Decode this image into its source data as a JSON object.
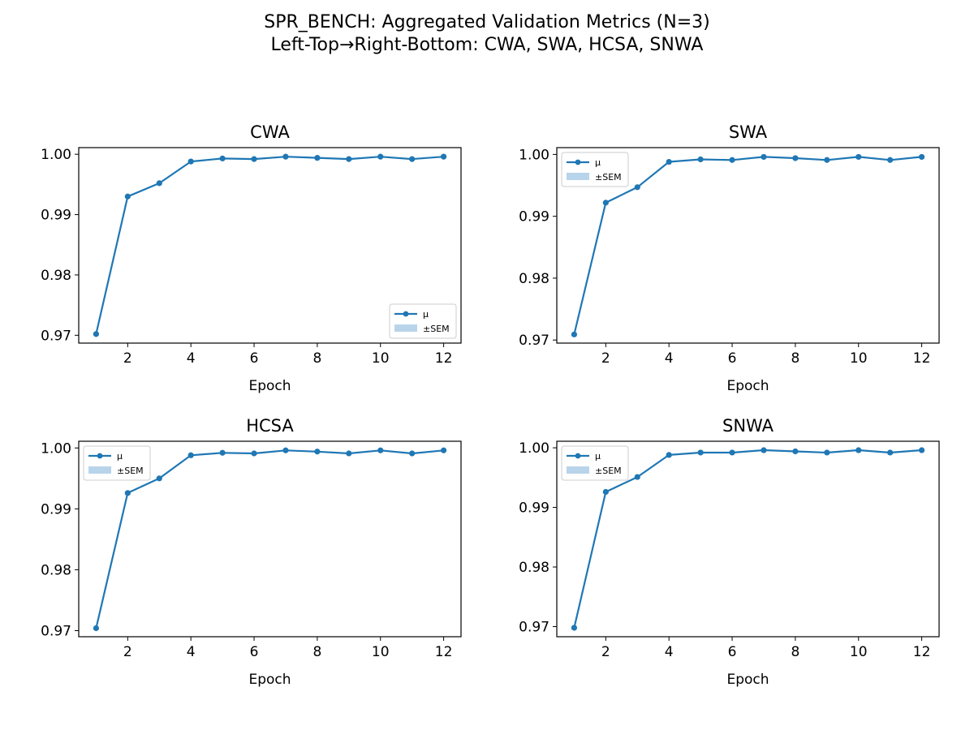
{
  "title": "SPR_BENCH: Aggregated Validation Metrics (N=3)",
  "subtitle": "Left-Top→Right-Bottom: CWA, SWA, HCSA, SNWA",
  "colors": {
    "line": "#1f77b4",
    "sem_fill": "#b8d4ea",
    "frame": "#000000"
  },
  "chart_data": [
    {
      "type": "line",
      "title": "CWA",
      "xlabel": "Epoch",
      "ylabel": "",
      "xlim": [
        0.45,
        12.55
      ],
      "ylim": [
        0.9687,
        1.0011
      ],
      "xticks": [
        2,
        4,
        6,
        8,
        10,
        12
      ],
      "yticks": [
        0.97,
        0.98,
        0.99,
        1.0
      ],
      "ytick_labels": [
        "0.97",
        "0.98",
        "0.99",
        "1.00"
      ],
      "legend": {
        "position": "lower-right",
        "entries": [
          "μ",
          "±SEM"
        ]
      },
      "series": [
        {
          "name": "μ",
          "x": [
            1,
            2,
            3,
            4,
            5,
            6,
            7,
            8,
            9,
            10,
            11,
            12
          ],
          "values": [
            0.9702,
            0.993,
            0.9952,
            0.9988,
            0.9993,
            0.9992,
            0.9996,
            0.9994,
            0.9992,
            0.9996,
            0.9992,
            0.9996
          ]
        }
      ]
    },
    {
      "type": "line",
      "title": "SWA",
      "xlabel": "Epoch",
      "ylabel": "",
      "xlim": [
        0.45,
        12.55
      ],
      "ylim": [
        0.9695,
        1.0011
      ],
      "xticks": [
        2,
        4,
        6,
        8,
        10,
        12
      ],
      "yticks": [
        0.97,
        0.98,
        0.99,
        1.0
      ],
      "ytick_labels": [
        "0.97",
        "0.98",
        "0.99",
        "1.00"
      ],
      "legend": {
        "position": "upper-left",
        "entries": [
          "μ",
          "±SEM"
        ]
      },
      "series": [
        {
          "name": "μ",
          "x": [
            1,
            2,
            3,
            4,
            5,
            6,
            7,
            8,
            9,
            10,
            11,
            12
          ],
          "values": [
            0.9709,
            0.9922,
            0.9947,
            0.9988,
            0.9992,
            0.9991,
            0.9996,
            0.9994,
            0.9991,
            0.9996,
            0.9991,
            0.9996
          ]
        }
      ]
    },
    {
      "type": "line",
      "title": "HCSA",
      "xlabel": "Epoch",
      "ylabel": "",
      "xlim": [
        0.45,
        12.55
      ],
      "ylim": [
        0.969,
        1.0011
      ],
      "xticks": [
        2,
        4,
        6,
        8,
        10,
        12
      ],
      "yticks": [
        0.97,
        0.98,
        0.99,
        1.0
      ],
      "ytick_labels": [
        "0.97",
        "0.98",
        "0.99",
        "1.00"
      ],
      "legend": {
        "position": "upper-left",
        "entries": [
          "μ",
          "±SEM"
        ]
      },
      "series": [
        {
          "name": "μ",
          "x": [
            1,
            2,
            3,
            4,
            5,
            6,
            7,
            8,
            9,
            10,
            11,
            12
          ],
          "values": [
            0.9704,
            0.9926,
            0.995,
            0.9988,
            0.9992,
            0.9991,
            0.9996,
            0.9994,
            0.9991,
            0.9996,
            0.9991,
            0.9996
          ]
        }
      ]
    },
    {
      "type": "line",
      "title": "SNWA",
      "xlabel": "Epoch",
      "ylabel": "",
      "xlim": [
        0.45,
        12.55
      ],
      "ylim": [
        0.9683,
        1.0011
      ],
      "xticks": [
        2,
        4,
        6,
        8,
        10,
        12
      ],
      "yticks": [
        0.97,
        0.98,
        0.99,
        1.0
      ],
      "ytick_labels": [
        "0.97",
        "0.98",
        "0.99",
        "1.00"
      ],
      "legend": {
        "position": "upper-left",
        "entries": [
          "μ",
          "±SEM"
        ]
      },
      "series": [
        {
          "name": "μ",
          "x": [
            1,
            2,
            3,
            4,
            5,
            6,
            7,
            8,
            9,
            10,
            11,
            12
          ],
          "values": [
            0.9698,
            0.9926,
            0.9951,
            0.9988,
            0.9992,
            0.9992,
            0.9996,
            0.9994,
            0.9992,
            0.9996,
            0.9992,
            0.9996
          ]
        }
      ]
    }
  ]
}
